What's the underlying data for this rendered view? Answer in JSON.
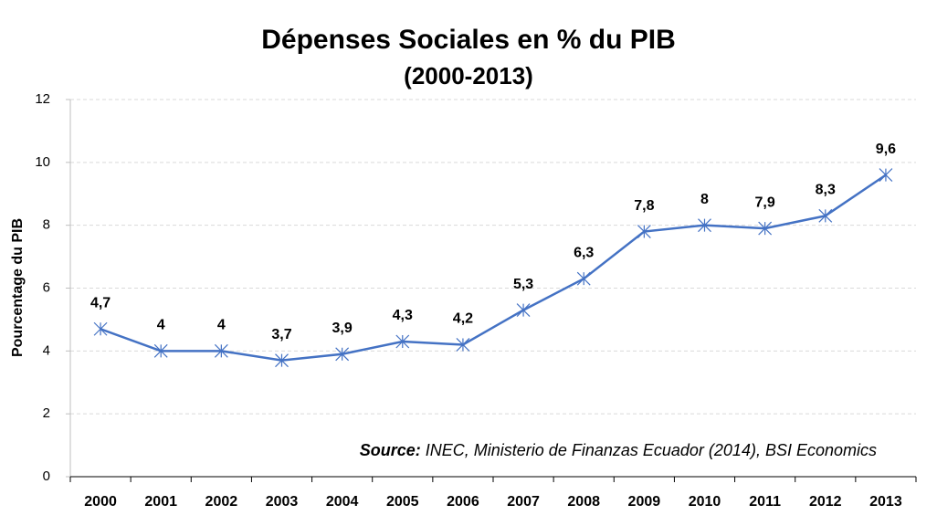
{
  "chart_data": {
    "type": "line",
    "title": "Dépenses Sociales en % du PIB",
    "subtitle": "(2000-2013)",
    "y_label": "Pourcentage du PIB",
    "source_label": "Source:",
    "source": "INEC, Ministerio de Finanzas Ecuador (2014), BSI Economics",
    "categories": [
      "2000",
      "2001",
      "2002",
      "2003",
      "2004",
      "2005",
      "2006",
      "2007",
      "2008",
      "2009",
      "2010",
      "2011",
      "2012",
      "2013"
    ],
    "series": [
      {
        "name": "Dépenses Sociales",
        "color": "#4472c4",
        "values": [
          4.7,
          4,
          4,
          3.7,
          3.9,
          4.3,
          4.2,
          5.3,
          6.3,
          7.8,
          8,
          7.9,
          8.3,
          9.6
        ],
        "value_labels": [
          "4,7",
          "4",
          "4",
          "3,7",
          "3,9",
          "4,3",
          "4,2",
          "5,3",
          "6,3",
          "7,8",
          "8",
          "7,9",
          "8,3",
          "9,6"
        ]
      }
    ],
    "ylim": [
      0,
      12
    ],
    "yticks": [
      0,
      2,
      4,
      6,
      8,
      10,
      12
    ],
    "grid": true
  }
}
